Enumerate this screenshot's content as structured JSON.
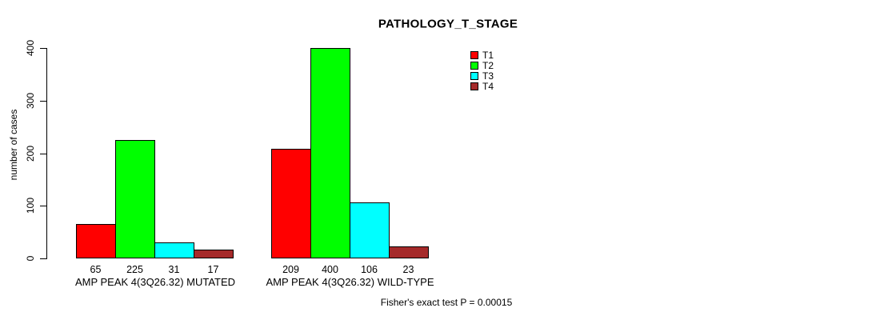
{
  "chart_data": {
    "type": "bar",
    "title": "PATHOLOGY_T_STAGE",
    "ylabel": "number of cases",
    "xlabel": "",
    "ylim": [
      0,
      400
    ],
    "yticks": [
      0,
      100,
      200,
      300,
      400
    ],
    "grid": false,
    "legend_position": "top-right",
    "categories": [
      "AMP PEAK 4(3Q26.32) MUTATED",
      "AMP PEAK 4(3Q26.32) WILD-TYPE"
    ],
    "series": [
      {
        "name": "T1",
        "color": "#FF0000",
        "values": [
          65,
          209
        ]
      },
      {
        "name": "T2",
        "color": "#00FF00",
        "values": [
          225,
          400
        ]
      },
      {
        "name": "T3",
        "color": "#00FFFF",
        "values": [
          31,
          106
        ]
      },
      {
        "name": "T4",
        "color": "#A52A2A",
        "values": [
          17,
          23
        ]
      }
    ],
    "show_bar_value_labels": true,
    "annotation": "Fisher's exact test P = 0.00015"
  }
}
